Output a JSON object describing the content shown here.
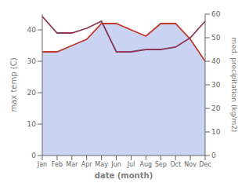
{
  "chart_data": {
    "type": "line",
    "categories": [
      "Jan",
      "Feb",
      "Mar",
      "Apr",
      "May",
      "Jun",
      "Jul",
      "Aug",
      "Sep",
      "Oct",
      "Nov",
      "Dec"
    ],
    "xlabel": "date (month)",
    "ylabel": "max temp (C)",
    "y2label": "med. precipitation (kg/m2)",
    "ylim": [
      0,
      45
    ],
    "yticks": [
      0,
      10,
      20,
      30,
      40
    ],
    "y2lim": [
      0,
      60
    ],
    "y2ticks": [
      0,
      10,
      20,
      30,
      40,
      50,
      60
    ],
    "grid": false,
    "series": [
      {
        "type": "area",
        "color": "#b8c4ee",
        "values": [
          33,
          33,
          35,
          37,
          42,
          42,
          40,
          38,
          42,
          42,
          37,
          30
        ]
      },
      {
        "type": "line",
        "color": "#c0392b",
        "values": [
          33,
          33,
          35,
          37,
          42,
          42,
          40,
          38,
          42,
          42,
          37,
          30
        ]
      },
      {
        "type": "line",
        "color": "#8b3a5a",
        "axis": "y2",
        "values": [
          59,
          52,
          52,
          54,
          57,
          44,
          44,
          45,
          45,
          46,
          50,
          57
        ]
      }
    ]
  }
}
